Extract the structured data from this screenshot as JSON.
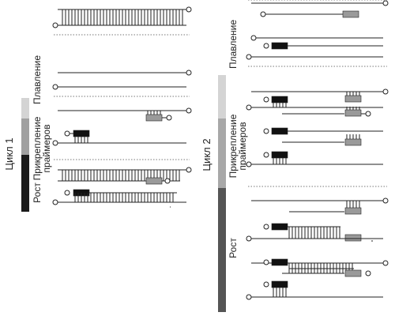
{
  "cycle1": {
    "title": "Цикл 1",
    "stages": {
      "melting": "Плавление",
      "annealing_line1": "Прикрепление",
      "annealing_line2": "праймеров",
      "extension": "Рост"
    },
    "stage_bar_colors": {
      "melting": "#d4d4d4",
      "annealing": "#a0a0a0",
      "extension": "#1a1a1a"
    }
  },
  "cycle2": {
    "title": "Цикл 2",
    "stages": {
      "melting": "Плавление",
      "annealing_line1": "Прикрепление",
      "annealing_line2": "праймеров",
      "extension": "Рост"
    },
    "stage_bar_colors": {
      "melting": "#d4d4d4",
      "annealing": "#a8a8a8",
      "extension": "#555555"
    }
  },
  "colors": {
    "strand": "#222222",
    "forward_primer": "#111111",
    "reverse_primer": "#9a9a9a",
    "separator": "#777777"
  }
}
